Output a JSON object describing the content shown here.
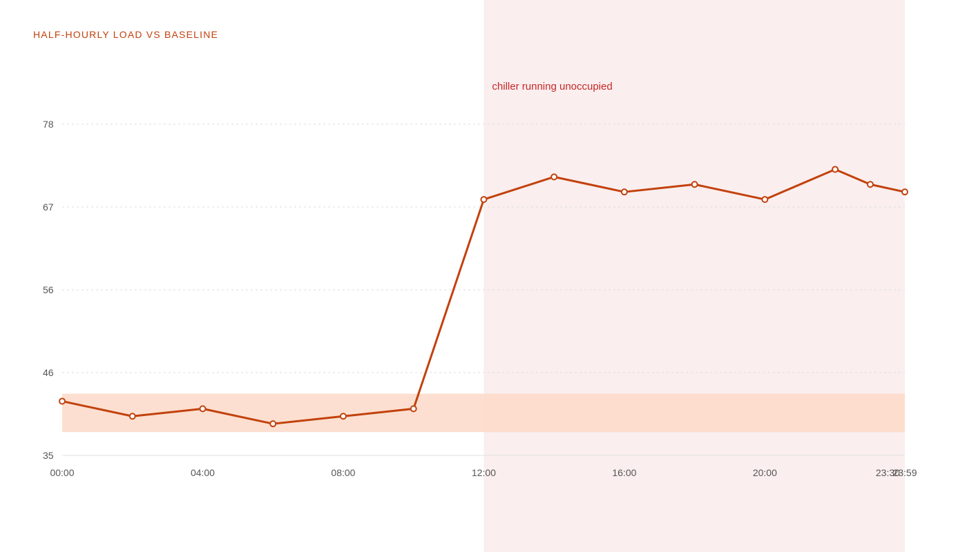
{
  "chart_data": {
    "type": "line",
    "title": "HALF-HOURLY LOAD VS BASELINE",
    "xlabel": "",
    "ylabel": "",
    "x_ticks": [
      "00:00",
      "04:00",
      "08:00",
      "12:00",
      "16:00",
      "20:00",
      "23:30",
      "23:59"
    ],
    "y_ticks": [
      35,
      46,
      56,
      67,
      78
    ],
    "ylim": [
      35,
      78
    ],
    "grid": true,
    "series": [
      {
        "x": [
          "00:00",
          "02:00",
          "04:00",
          "06:00",
          "08:00",
          "10:00",
          "12:00",
          "14:00",
          "16:00",
          "18:00",
          "20:00",
          "22:00",
          "23:00",
          "23:59"
        ],
        "values": [
          42.2,
          40.2,
          41.2,
          39.2,
          40.2,
          41.2,
          68.0,
          71.0,
          69.0,
          70.0,
          68.0,
          72.0,
          70.0,
          69.0
        ]
      }
    ],
    "baseline_band": {
      "low": 38.1,
      "high": 43.2
    },
    "highlight_region": {
      "x_start": "12:00",
      "x_end": "23:59"
    },
    "annotation": {
      "text": "chiller running unoccupied",
      "x": "12:00"
    },
    "colors": {
      "line": "#c2410c",
      "title": "#c2410c",
      "annotation": "#c62828",
      "baseline_band": "#fbd9c8",
      "highlight_region": "#faeeee",
      "grid": "#dddddd",
      "tick_label": "#555555"
    }
  }
}
